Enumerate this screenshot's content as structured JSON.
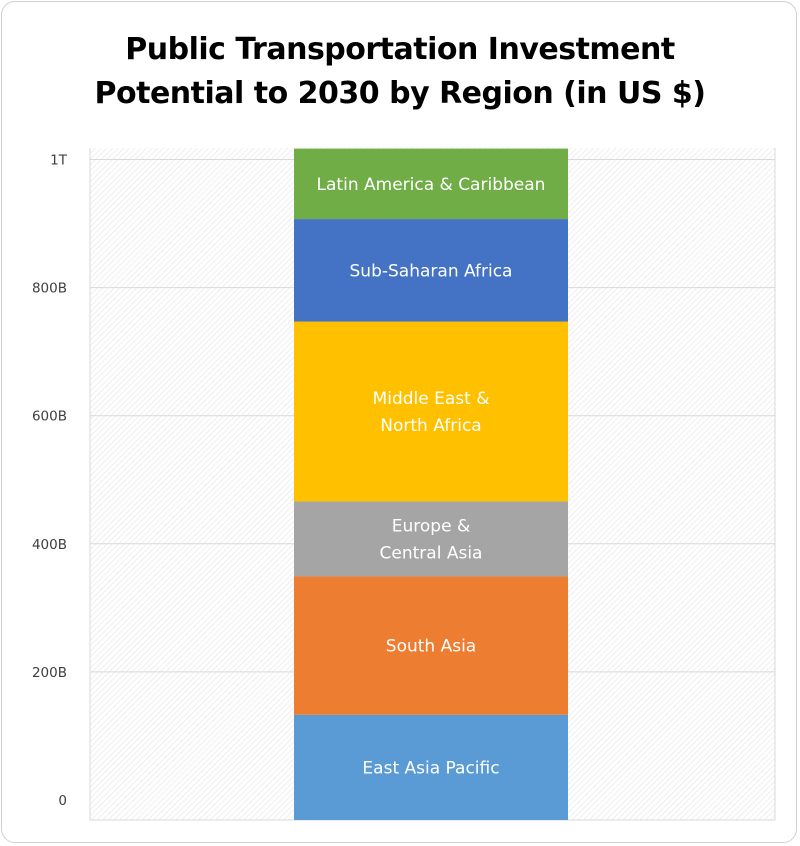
{
  "title_lines": [
    "Public Transportation Investment",
    "Potential to 2030 by Region (in US $)"
  ],
  "chart_data": {
    "type": "bar",
    "stacked": true,
    "title": "Public Transportation Investment Potential to 2030 by Region (in US $)",
    "xlabel": "",
    "ylabel": "",
    "ylim": [
      0,
      1000
    ],
    "y_ticks": [
      {
        "value": 0,
        "label": "0"
      },
      {
        "value": 200,
        "label": "200B"
      },
      {
        "value": 400,
        "label": "400B"
      },
      {
        "value": 600,
        "label": "600B"
      },
      {
        "value": 800,
        "label": "800B"
      },
      {
        "value": 1000,
        "label": "1T"
      }
    ],
    "grid": true,
    "legend": "none",
    "series": [
      {
        "name": "East Asia Pacific",
        "label_lines": [
          "East Asia Pacific"
        ],
        "value": 133,
        "color": "#5b9bd5"
      },
      {
        "name": "South Asia",
        "label_lines": [
          "South Asia"
        ],
        "value": 216,
        "color": "#ed7d31"
      },
      {
        "name": "Europe & Central Asia",
        "label_lines": [
          "Europe &",
          "Central Asia"
        ],
        "value": 117,
        "color": "#a5a5a5"
      },
      {
        "name": "Middle East & North Africa",
        "label_lines": [
          "Middle East &",
          "North Africa"
        ],
        "value": 281,
        "color": "#ffc000"
      },
      {
        "name": "Sub-Saharan Africa",
        "label_lines": [
          "Sub-Saharan Africa"
        ],
        "value": 160,
        "color": "#4472c4"
      },
      {
        "name": "Latin America & Caribbean",
        "label_lines": [
          "Latin America & Caribbean"
        ],
        "value": 110,
        "color": "#70ad47"
      }
    ]
  }
}
